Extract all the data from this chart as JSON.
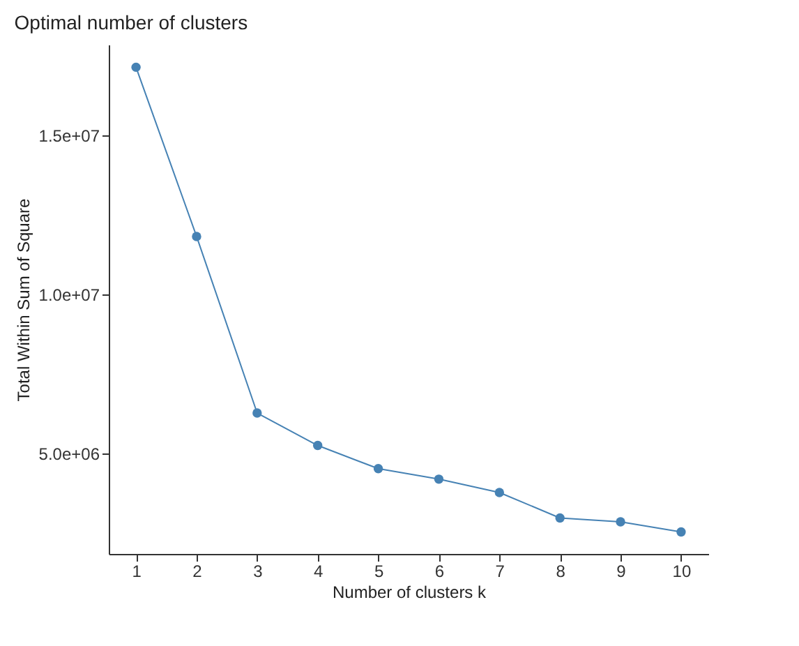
{
  "chart_data": {
    "type": "line",
    "title": "Optimal number of clusters",
    "xlabel": "Number of clusters k",
    "ylabel": "Total Within Sum of Square",
    "x": [
      1,
      2,
      3,
      4,
      5,
      6,
      7,
      8,
      9,
      10
    ],
    "series": [
      {
        "color": "#4682b4",
        "values": [
          17150000,
          11830000,
          6280000,
          5260000,
          4530000,
          4200000,
          3780000,
          2980000,
          2860000,
          2540000
        ]
      }
    ],
    "xlim": [
      0.55,
      10.45
    ],
    "xticks": [
      1,
      2,
      3,
      4,
      5,
      6,
      7,
      8,
      9,
      10
    ],
    "ylim": [
      1850000,
      17860000
    ],
    "yticks": [
      {
        "value": 5000000,
        "label": "5.0e+06"
      },
      {
        "value": 10000000,
        "label": "1.0e+07"
      },
      {
        "value": 15000000,
        "label": "1.5e+07"
      }
    ],
    "grid": false,
    "marker": "circle",
    "line_style": "solid"
  }
}
